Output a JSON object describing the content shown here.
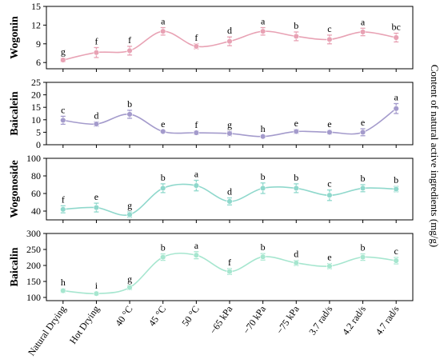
{
  "chart_data": {
    "type": "line",
    "categories": [
      "Natural Drying",
      "Hot Drying",
      "40 °C",
      "45 °C",
      "50 °C",
      "−65 kPa",
      "−70 kPa",
      "−75 kPa",
      "3.7 rad/s",
      "4.2 rad/s",
      "4.7 rad/s"
    ],
    "ylabel_right": "Content of natural active ingredients (mg/g)",
    "panels": [
      {
        "name": "Wogonin",
        "ylabel": "Wogonin",
        "color": "#e8a2b4",
        "ylim": [
          5,
          15
        ],
        "yticks": [
          6,
          9,
          12,
          15
        ],
        "values": [
          6.4,
          7.6,
          7.9,
          11.0,
          8.6,
          9.4,
          11.0,
          10.2,
          9.7,
          10.9,
          10.0
        ],
        "errors": [
          0.3,
          0.8,
          0.7,
          0.6,
          0.4,
          0.7,
          0.6,
          0.7,
          0.7,
          0.6,
          0.7
        ],
        "letters": [
          "g",
          "f",
          "f",
          "a",
          "f",
          "d",
          "a",
          "b",
          "c",
          "a",
          "bc"
        ]
      },
      {
        "name": "Baicalein",
        "ylabel": "Baicalein",
        "color": "#a49bcc",
        "ylim": [
          0,
          25
        ],
        "yticks": [
          0,
          5,
          10,
          15,
          20,
          25
        ],
        "values": [
          9.8,
          8.3,
          12.2,
          5.3,
          4.8,
          4.5,
          3.3,
          5.3,
          5.0,
          5.0,
          14.5
        ],
        "errors": [
          1.6,
          0.9,
          1.6,
          0.5,
          0.7,
          0.9,
          0.5,
          0.8,
          0.7,
          1.4,
          2.0
        ],
        "letters": [
          "c",
          "d",
          "b",
          "e",
          "f",
          "g",
          "h",
          "e",
          "e",
          "e",
          "a"
        ]
      },
      {
        "name": "Wogonoside",
        "ylabel": "Wogonoside",
        "color": "#8fd8cc",
        "ylim": [
          30,
          100
        ],
        "yticks": [
          40,
          60,
          80,
          100
        ],
        "values": [
          42.0,
          44.0,
          36.0,
          66.0,
          69.0,
          51.0,
          66.0,
          66.0,
          58.0,
          66.0,
          65.0
        ],
        "errors": [
          4.0,
          5.0,
          3.0,
          5.0,
          6.0,
          4.0,
          6.0,
          5.0,
          6.0,
          4.0,
          3.0
        ],
        "letters": [
          "f",
          "e",
          "g",
          "b",
          "a",
          "d",
          "b",
          "b",
          "c",
          "b",
          "b"
        ]
      },
      {
        "name": "Baicalin",
        "ylabel": "Baicalin",
        "color": "#a6e6cf",
        "ylim": [
          90,
          300
        ],
        "yticks": [
          100,
          150,
          200,
          250,
          300
        ],
        "values": [
          121,
          112,
          131,
          226,
          232,
          181,
          227,
          208,
          198,
          226,
          215
        ],
        "errors": [
          6,
          5,
          7,
          10,
          11,
          9,
          10,
          8,
          8,
          10,
          10
        ],
        "letters": [
          "h",
          "i",
          "g",
          "b",
          "a",
          "f",
          "b",
          "d",
          "e",
          "b",
          "c"
        ]
      }
    ]
  }
}
